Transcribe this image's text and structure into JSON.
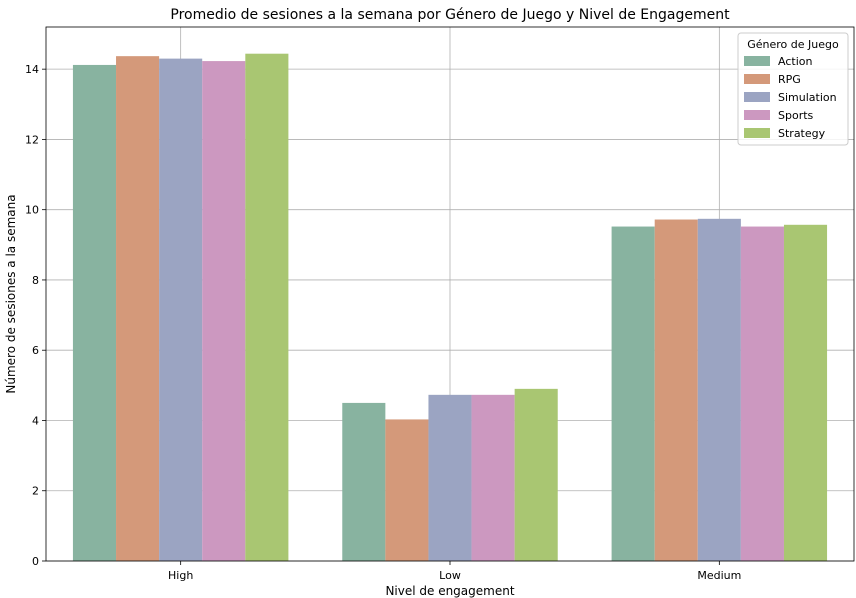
{
  "chart_data": {
    "type": "bar",
    "title": "Promedio de sesiones a la semana por Género de Juego y Nivel de Engagement",
    "xlabel": "Nivel de engagement",
    "ylabel": "Número de sesiones a la semana",
    "categories": [
      "High",
      "Low",
      "Medium"
    ],
    "ylim": [
      0,
      15.2
    ],
    "yticks": [
      0,
      2,
      4,
      6,
      8,
      10,
      12,
      14
    ],
    "grid": true,
    "legend": {
      "title": "Género de Juego",
      "placement": "top-right"
    },
    "series": [
      {
        "name": "Action",
        "color": "#88b3a0",
        "values": [
          14.12,
          4.5,
          9.52
        ]
      },
      {
        "name": "RPG",
        "color": "#d4997a",
        "values": [
          14.37,
          4.03,
          9.72
        ]
      },
      {
        "name": "Simulation",
        "color": "#9ba4c2",
        "values": [
          14.3,
          4.73,
          9.74
        ]
      },
      {
        "name": "Sports",
        "color": "#cc98c0",
        "values": [
          14.23,
          4.73,
          9.52
        ]
      },
      {
        "name": "Strategy",
        "color": "#a9c672",
        "values": [
          14.44,
          4.9,
          9.57
        ]
      }
    ]
  }
}
